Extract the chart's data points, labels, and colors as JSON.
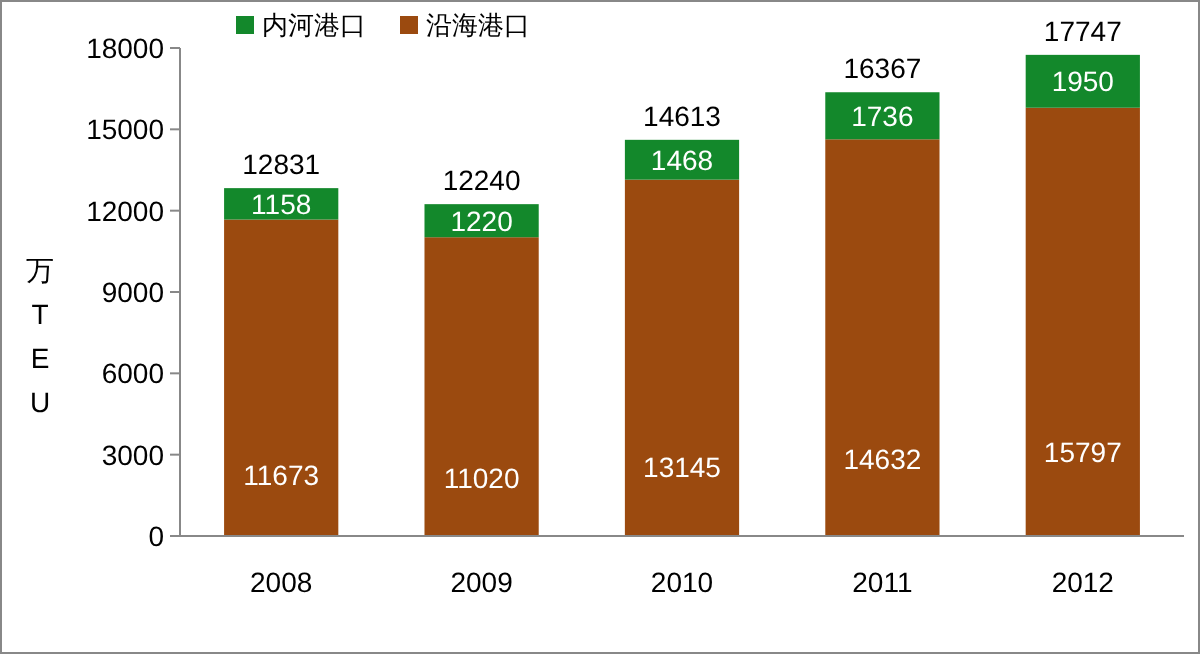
{
  "chart_data": {
    "type": "bar",
    "stacked": true,
    "ylabel": "万TEU",
    "categories": [
      "2008",
      "2009",
      "2010",
      "2011",
      "2012"
    ],
    "series": [
      {
        "name": "沿海港口",
        "color": "#9b4a0f",
        "values": [
          11673,
          11020,
          13145,
          14632,
          15797
        ]
      },
      {
        "name": "内河港口",
        "color": "#13882b",
        "values": [
          1158,
          1220,
          1468,
          1736,
          1950
        ]
      }
    ],
    "ylim": [
      0,
      18000
    ],
    "yticks": [
      0,
      3000,
      6000,
      9000,
      12000,
      15000,
      18000
    ],
    "legend": "top left",
    "data_labels": true,
    "totals": [
      "12831",
      "12240",
      "14613",
      "16367",
      "17747"
    ]
  }
}
